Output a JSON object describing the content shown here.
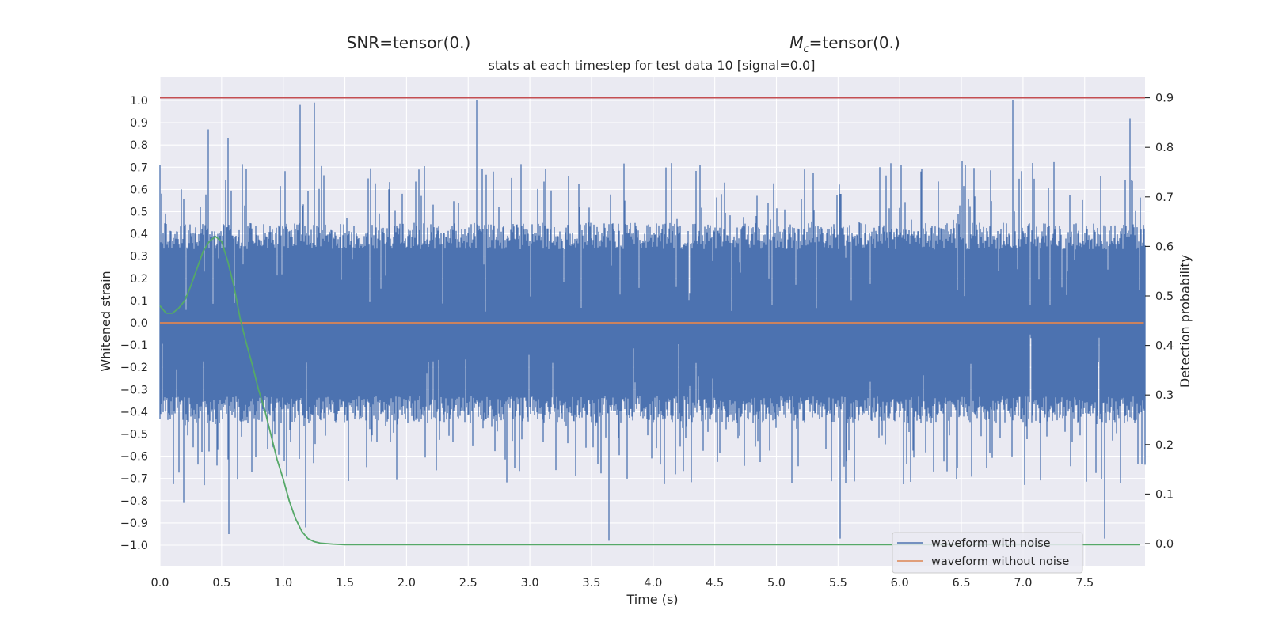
{
  "titles": {
    "snr": "SNR=tensor(0.)",
    "mc_symbol": "M",
    "mc_sub": "c",
    "mc_rest": "=tensor(0.)",
    "axes_title": "stats at each timestep for test data 10 [signal=0.0]"
  },
  "chart_data": {
    "type": "line",
    "title": "stats at each timestep for test data 10 [signal=0.0]",
    "xlabel": "Time (s)",
    "ylabel": "Whitened strain",
    "y2label": "Detection probability",
    "xlim": [
      0.0,
      7.98
    ],
    "ylim": [
      -1.1,
      1.1
    ],
    "y2lim": [
      -0.035,
      0.945
    ],
    "x_ticks": [
      "0.0",
      "0.5",
      "1.0",
      "1.5",
      "2.0",
      "2.5",
      "3.0",
      "3.5",
      "4.0",
      "4.5",
      "5.0",
      "5.5",
      "6.0",
      "6.5",
      "7.0",
      "7.5"
    ],
    "y_ticks": [
      "1.0",
      "0.9",
      "0.8",
      "0.7",
      "0.6",
      "0.5",
      "0.4",
      "0.3",
      "0.2",
      "0.1",
      "0.0",
      "−0.1",
      "−0.2",
      "−0.3",
      "−0.4",
      "−0.5",
      "−0.6",
      "−0.7",
      "−0.8",
      "−0.9",
      "−1.0"
    ],
    "y2_ticks": [
      "0.9",
      "0.8",
      "0.7",
      "0.6",
      "0.5",
      "0.4",
      "0.3",
      "0.2",
      "0.1",
      "0.0"
    ],
    "grid": true,
    "legend_position": "lower-right",
    "series": [
      {
        "name": "waveform with noise",
        "axis": "left",
        "color": "#4c72b0",
        "description_values": {
          "typical_range": [
            -0.55,
            0.55
          ],
          "max": 0.99,
          "min": -0.98
        },
        "notable_peaks": [
          [
            0.0,
            0.71
          ],
          [
            0.39,
            0.87
          ],
          [
            0.55,
            0.83
          ],
          [
            1.14,
            0.98
          ],
          [
            1.25,
            0.99
          ],
          [
            2.57,
            1.0
          ],
          [
            6.92,
            1.0
          ],
          [
            7.87,
            0.92
          ],
          [
            0.56,
            -0.95
          ],
          [
            3.64,
            -0.98
          ],
          [
            5.52,
            -0.97
          ],
          [
            7.66,
            -0.97
          ],
          [
            1.18,
            -0.92
          ],
          [
            0.19,
            -0.81
          ]
        ]
      },
      {
        "name": "waveform without noise",
        "axis": "left",
        "color": "#dd8452",
        "x": [
          0.0,
          7.98
        ],
        "values": [
          0.0,
          0.0
        ]
      },
      {
        "axis": "right",
        "color": "#55a868",
        "x": [
          0.0,
          0.05,
          0.1,
          0.15,
          0.2,
          0.25,
          0.3,
          0.35,
          0.4,
          0.45,
          0.5,
          0.55,
          0.6,
          0.65,
          0.7,
          0.75,
          0.8,
          0.85,
          0.9,
          0.95,
          1.0,
          1.05,
          1.1,
          1.15,
          1.2,
          1.25,
          1.3,
          1.35,
          1.4,
          1.5,
          1.7,
          2.0,
          3.0,
          4.0,
          5.0,
          6.0,
          7.0,
          7.95
        ],
        "values": [
          0.48,
          0.465,
          0.465,
          0.475,
          0.49,
          0.52,
          0.555,
          0.59,
          0.61,
          0.62,
          0.61,
          0.57,
          0.52,
          0.455,
          0.405,
          0.36,
          0.31,
          0.27,
          0.22,
          0.17,
          0.13,
          0.085,
          0.05,
          0.025,
          0.01,
          0.004,
          0.001,
          0.0,
          -0.001,
          -0.002,
          -0.002,
          -0.002,
          -0.002,
          -0.002,
          -0.002,
          -0.002,
          -0.002,
          -0.002
        ]
      },
      {
        "axis": "right",
        "color": "#c44e52",
        "x": [
          0.0,
          7.98
        ],
        "values": [
          0.9,
          0.9
        ]
      }
    ]
  }
}
